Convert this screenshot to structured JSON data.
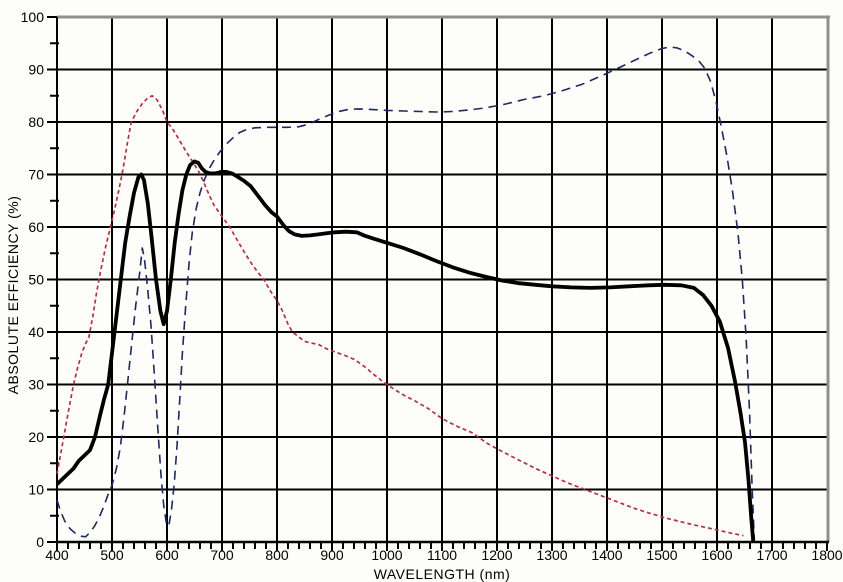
{
  "chart_data": {
    "type": "line",
    "title": "",
    "xlabel": "WAVELENGTH (nm)",
    "ylabel": "ABSOLUTE EFFICIENCY (%)",
    "xlim": [
      400,
      1800
    ],
    "ylim": [
      0,
      100
    ],
    "x_major_step": 100,
    "x_minor_step": 20,
    "y_major_step": 10,
    "y_minor_step": 5,
    "x_tick_labels": [
      400,
      500,
      600,
      700,
      800,
      900,
      1000,
      1100,
      1200,
      1300,
      1400,
      1500,
      1600,
      1700,
      1800
    ],
    "y_tick_labels": [
      0,
      10,
      20,
      30,
      40,
      50,
      60,
      70,
      80,
      90,
      100
    ],
    "grid": "major-both",
    "legend": "none",
    "colors": {
      "grid": "#000000",
      "axis": "#000000",
      "border_top_right": "#8f8f8f",
      "background": "#fdfdfa"
    },
    "series": [
      {
        "name": "red-short-dash-curve",
        "color": "#b23240",
        "width": 1.7,
        "dash": "4 3",
        "points": [
          [
            400,
            13
          ],
          [
            407,
            17
          ],
          [
            414,
            21
          ],
          [
            421,
            25
          ],
          [
            429,
            29.5
          ],
          [
            437,
            33
          ],
          [
            445,
            36
          ],
          [
            452,
            37.8
          ],
          [
            458,
            39
          ],
          [
            465,
            43
          ],
          [
            472,
            47.5
          ],
          [
            480,
            52
          ],
          [
            488,
            56
          ],
          [
            496,
            59.5
          ],
          [
            504,
            63
          ],
          [
            512,
            66.8
          ],
          [
            520,
            71
          ],
          [
            528,
            76
          ],
          [
            535,
            80
          ],
          [
            545,
            82
          ],
          [
            555,
            83.5
          ],
          [
            565,
            84.6
          ],
          [
            573,
            85
          ],
          [
            582,
            84.2
          ],
          [
            592,
            82.2
          ],
          [
            600,
            80
          ],
          [
            610,
            78.7
          ],
          [
            620,
            77
          ],
          [
            630,
            75.2
          ],
          [
            640,
            73.5
          ],
          [
            650,
            71.9
          ],
          [
            658,
            70.5
          ],
          [
            667,
            68.5
          ],
          [
            675,
            66.5
          ],
          [
            685,
            64.2
          ],
          [
            700,
            62
          ],
          [
            714,
            60
          ],
          [
            726,
            57.8
          ],
          [
            740,
            55.3
          ],
          [
            755,
            52.8
          ],
          [
            768,
            51
          ],
          [
            776,
            50
          ],
          [
            788,
            47.8
          ],
          [
            800,
            46
          ],
          [
            810,
            44
          ],
          [
            820,
            41.5
          ],
          [
            828,
            40
          ],
          [
            838,
            39.2
          ],
          [
            850,
            38.2
          ],
          [
            862,
            37.9
          ],
          [
            876,
            37.6
          ],
          [
            890,
            36.8
          ],
          [
            905,
            36.2
          ],
          [
            922,
            35.6
          ],
          [
            940,
            34.8
          ],
          [
            958,
            33.5
          ],
          [
            975,
            32
          ],
          [
            992,
            30.6
          ],
          [
            1010,
            29.3
          ],
          [
            1030,
            28
          ],
          [
            1052,
            26.8
          ],
          [
            1075,
            25.4
          ],
          [
            1100,
            23.5
          ],
          [
            1128,
            22
          ],
          [
            1155,
            20.8
          ],
          [
            1182,
            18.8
          ],
          [
            1210,
            17.2
          ],
          [
            1240,
            15.6
          ],
          [
            1270,
            14
          ],
          [
            1300,
            12.6
          ],
          [
            1330,
            11.2
          ],
          [
            1360,
            10
          ],
          [
            1390,
            8.8
          ],
          [
            1420,
            7.6
          ],
          [
            1450,
            6.4
          ],
          [
            1480,
            5.4
          ],
          [
            1510,
            4.5
          ],
          [
            1540,
            3.7
          ],
          [
            1570,
            3
          ],
          [
            1600,
            2.3
          ],
          [
            1625,
            1.7
          ],
          [
            1648,
            1.2
          ]
        ]
      },
      {
        "name": "navy-long-dash-curve",
        "color": "#1c2a5e",
        "width": 1.6,
        "dash": "9 6",
        "points": [
          [
            400,
            8
          ],
          [
            406,
            6
          ],
          [
            414,
            4
          ],
          [
            424,
            2.5
          ],
          [
            434,
            1.6
          ],
          [
            444,
            1.1
          ],
          [
            452,
            1
          ],
          [
            460,
            1.8
          ],
          [
            468,
            3
          ],
          [
            476,
            4.5
          ],
          [
            484,
            6.5
          ],
          [
            492,
            8.8
          ],
          [
            500,
            10.8
          ],
          [
            508,
            14
          ],
          [
            515,
            18
          ],
          [
            522,
            24
          ],
          [
            529,
            31
          ],
          [
            536,
            38
          ],
          [
            543,
            45
          ],
          [
            550,
            51
          ],
          [
            555,
            56
          ],
          [
            559,
            54
          ],
          [
            565,
            48
          ],
          [
            571,
            41
          ],
          [
            577,
            32
          ],
          [
            583,
            22
          ],
          [
            589,
            13
          ],
          [
            594,
            7
          ],
          [
            599,
            3.5
          ],
          [
            603,
            3
          ],
          [
            608,
            6
          ],
          [
            613,
            11
          ],
          [
            618,
            18
          ],
          [
            623,
            27
          ],
          [
            628,
            36
          ],
          [
            634,
            45
          ],
          [
            640,
            53
          ],
          [
            646,
            59
          ],
          [
            653,
            63.5
          ],
          [
            660,
            66.5
          ],
          [
            668,
            69
          ],
          [
            676,
            71
          ],
          [
            686,
            72.8
          ],
          [
            696,
            74.3
          ],
          [
            708,
            75.8
          ],
          [
            720,
            77
          ],
          [
            732,
            78
          ],
          [
            745,
            78.6
          ],
          [
            760,
            78.9
          ],
          [
            780,
            79
          ],
          [
            800,
            79
          ],
          [
            820,
            79
          ],
          [
            840,
            79.1
          ],
          [
            858,
            79.6
          ],
          [
            876,
            80.5
          ],
          [
            894,
            81.3
          ],
          [
            912,
            82
          ],
          [
            930,
            82.4
          ],
          [
            948,
            82.5
          ],
          [
            970,
            82.4
          ],
          [
            1000,
            82.2
          ],
          [
            1030,
            82.1
          ],
          [
            1060,
            82
          ],
          [
            1090,
            81.9
          ],
          [
            1120,
            82
          ],
          [
            1150,
            82.3
          ],
          [
            1180,
            82.7
          ],
          [
            1215,
            83.4
          ],
          [
            1250,
            84.3
          ],
          [
            1285,
            85
          ],
          [
            1320,
            86
          ],
          [
            1355,
            87.2
          ],
          [
            1390,
            88.8
          ],
          [
            1425,
            90.5
          ],
          [
            1455,
            92
          ],
          [
            1480,
            93.2
          ],
          [
            1500,
            94
          ],
          [
            1515,
            94.3
          ],
          [
            1528,
            94.1
          ],
          [
            1542,
            93.5
          ],
          [
            1555,
            92.6
          ],
          [
            1568,
            91.5
          ],
          [
            1578,
            90.2
          ],
          [
            1588,
            87.8
          ],
          [
            1598,
            84
          ],
          [
            1608,
            79
          ],
          [
            1618,
            73.5
          ],
          [
            1628,
            67
          ],
          [
            1638,
            59
          ],
          [
            1646,
            50
          ],
          [
            1653,
            39
          ],
          [
            1659,
            25
          ],
          [
            1664,
            10
          ],
          [
            1668,
            0
          ]
        ]
      },
      {
        "name": "black-thick-solid-curve",
        "color": "#000000",
        "width": 3.8,
        "dash": null,
        "points": [
          [
            400,
            11
          ],
          [
            410,
            12
          ],
          [
            420,
            13
          ],
          [
            430,
            14
          ],
          [
            440,
            15.5
          ],
          [
            450,
            16.5
          ],
          [
            460,
            17.5
          ],
          [
            469,
            20
          ],
          [
            478,
            24
          ],
          [
            485,
            27
          ],
          [
            493,
            30
          ],
          [
            500,
            36
          ],
          [
            508,
            43
          ],
          [
            516,
            50
          ],
          [
            524,
            57
          ],
          [
            532,
            62
          ],
          [
            540,
            66.5
          ],
          [
            548,
            69.5
          ],
          [
            553,
            70
          ],
          [
            558,
            69
          ],
          [
            565,
            64.5
          ],
          [
            572,
            58
          ],
          [
            580,
            50
          ],
          [
            588,
            44
          ],
          [
            594,
            41.5
          ],
          [
            600,
            44
          ],
          [
            607,
            50
          ],
          [
            614,
            57
          ],
          [
            621,
            62.5
          ],
          [
            628,
            67
          ],
          [
            635,
            70
          ],
          [
            642,
            71.8
          ],
          [
            650,
            72.5
          ],
          [
            657,
            72.2
          ],
          [
            663,
            71.2
          ],
          [
            670,
            70.5
          ],
          [
            678,
            70.2
          ],
          [
            688,
            70.2
          ],
          [
            698,
            70.5
          ],
          [
            708,
            70.5
          ],
          [
            718,
            70.2
          ],
          [
            728,
            69.6
          ],
          [
            740,
            68.8
          ],
          [
            752,
            67.8
          ],
          [
            765,
            66
          ],
          [
            778,
            64.2
          ],
          [
            790,
            62.8
          ],
          [
            800,
            62
          ],
          [
            812,
            60.3
          ],
          [
            822,
            59.2
          ],
          [
            832,
            58.6
          ],
          [
            845,
            58.3
          ],
          [
            860,
            58.4
          ],
          [
            875,
            58.6
          ],
          [
            890,
            58.8
          ],
          [
            905,
            59
          ],
          [
            925,
            59.1
          ],
          [
            945,
            59
          ],
          [
            958,
            58.4
          ],
          [
            975,
            57.8
          ],
          [
            1000,
            57
          ],
          [
            1030,
            56
          ],
          [
            1060,
            54.8
          ],
          [
            1090,
            53.5
          ],
          [
            1120,
            52.3
          ],
          [
            1150,
            51.3
          ],
          [
            1180,
            50.5
          ],
          [
            1210,
            49.8
          ],
          [
            1240,
            49.3
          ],
          [
            1270,
            49
          ],
          [
            1300,
            48.7
          ],
          [
            1335,
            48.5
          ],
          [
            1370,
            48.4
          ],
          [
            1405,
            48.5
          ],
          [
            1440,
            48.7
          ],
          [
            1475,
            48.9
          ],
          [
            1505,
            49
          ],
          [
            1535,
            48.9
          ],
          [
            1558,
            48.4
          ],
          [
            1575,
            47
          ],
          [
            1590,
            45
          ],
          [
            1605,
            42
          ],
          [
            1620,
            37
          ],
          [
            1633,
            30.5
          ],
          [
            1643,
            24.5
          ],
          [
            1651,
            19
          ],
          [
            1657,
            12
          ],
          [
            1662,
            5
          ],
          [
            1666,
            0
          ]
        ]
      }
    ]
  }
}
